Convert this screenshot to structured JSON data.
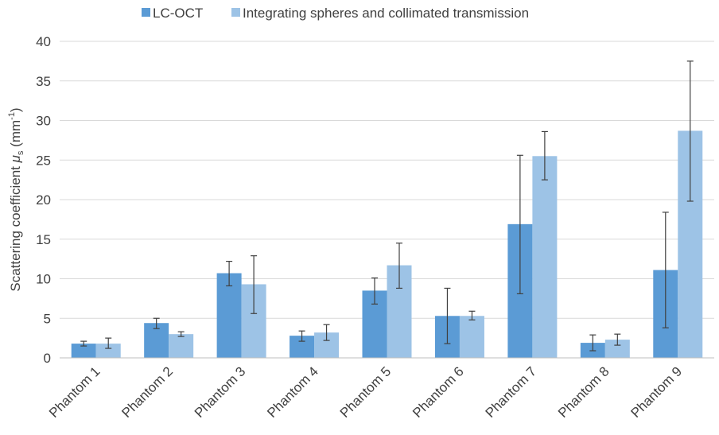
{
  "chart_data": {
    "type": "bar",
    "categories": [
      "Phantom 1",
      "Phantom 2",
      "Phantom 3",
      "Phantom 4",
      "Phantom 5",
      "Phantom 6",
      "Phantom 7",
      "Phantom 8",
      "Phantom 9"
    ],
    "series": [
      {
        "name": "LC-OCT",
        "color": "#5b9bd5",
        "values": [
          1.8,
          4.4,
          10.7,
          2.8,
          8.5,
          5.3,
          16.9,
          1.9,
          11.1
        ],
        "error_low": [
          1.5,
          3.7,
          9.1,
          2.1,
          6.8,
          1.8,
          8.1,
          0.9,
          3.8
        ],
        "error_high": [
          2.1,
          5.0,
          12.2,
          3.4,
          10.1,
          8.8,
          25.6,
          2.9,
          18.4
        ]
      },
      {
        "name": "Integrating spheres and collimated transmission",
        "color": "#9dc3e6",
        "values": [
          1.8,
          3.0,
          9.3,
          3.2,
          11.7,
          5.3,
          25.5,
          2.3,
          28.7
        ],
        "error_low": [
          1.2,
          2.7,
          5.6,
          2.2,
          8.8,
          4.8,
          22.5,
          1.6,
          19.8
        ],
        "error_high": [
          2.5,
          3.3,
          12.9,
          4.2,
          14.5,
          5.9,
          28.6,
          3.0,
          37.5
        ]
      }
    ],
    "ylim": [
      0,
      40
    ],
    "yticks": [
      0,
      5,
      10,
      15,
      20,
      25,
      30,
      35,
      40
    ],
    "ylabel": {
      "main": "Scattering coefficient ",
      "symbol": "μ",
      "subscript": "s",
      "unit_open": " (mm",
      "superscript": "-1",
      "unit_close": ")"
    },
    "grid": true,
    "legend_position": "top"
  }
}
